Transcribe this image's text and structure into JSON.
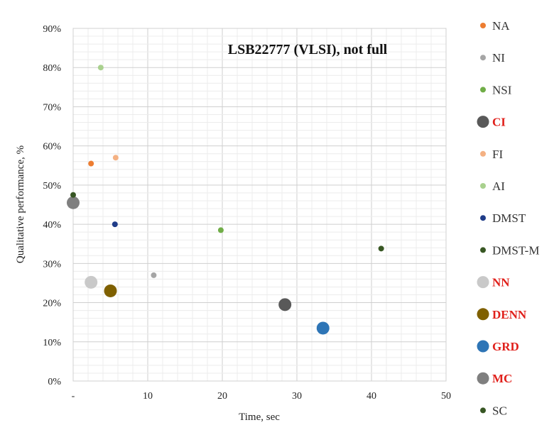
{
  "chart_data": {
    "type": "scatter",
    "title": "LSB22777 (VLSI), not full",
    "xlabel": "Time, sec",
    "ylabel": "Qualitative performance, %",
    "xlim": [
      0,
      50
    ],
    "ylim": [
      0,
      90
    ],
    "x_ticks": [
      "-",
      "10",
      "20",
      "30",
      "40",
      "50"
    ],
    "y_ticks": [
      "0%",
      "10%",
      "20%",
      "30%",
      "40%",
      "50%",
      "60%",
      "70%",
      "80%",
      "90%"
    ],
    "grid": true,
    "legend_position": "right",
    "series": [
      {
        "name": "NA",
        "color": "#ed7d31",
        "size": "small",
        "highlight": false,
        "points": [
          {
            "x": 2.4,
            "y": 55.5
          }
        ]
      },
      {
        "name": "NI",
        "color": "#a5a5a5",
        "size": "small",
        "highlight": false,
        "points": [
          {
            "x": 10.8,
            "y": 27.0
          }
        ]
      },
      {
        "name": "NSI",
        "color": "#70ad47",
        "size": "small",
        "highlight": false,
        "points": [
          {
            "x": 19.8,
            "y": 38.5
          }
        ]
      },
      {
        "name": "CI",
        "color": "#595959",
        "size": "large",
        "highlight": true,
        "points": [
          {
            "x": 28.4,
            "y": 19.5
          }
        ]
      },
      {
        "name": "FI",
        "color": "#f4b183",
        "size": "small",
        "highlight": false,
        "points": [
          {
            "x": 5.7,
            "y": 57.0
          }
        ]
      },
      {
        "name": "AI",
        "color": "#a9d18e",
        "size": "small",
        "highlight": false,
        "points": [
          {
            "x": 3.7,
            "y": 80.0
          }
        ]
      },
      {
        "name": "DMST",
        "color": "#1f3c88",
        "size": "small",
        "highlight": false,
        "points": [
          {
            "x": 5.6,
            "y": 40.0
          }
        ]
      },
      {
        "name": "DMST-M",
        "color": "#385723",
        "size": "small",
        "highlight": false,
        "points": [
          {
            "x": 41.3,
            "y": 33.8
          }
        ]
      },
      {
        "name": "NN",
        "color": "#c9c9c9",
        "size": "large",
        "highlight": true,
        "points": [
          {
            "x": 2.4,
            "y": 25.2
          }
        ]
      },
      {
        "name": "DENN",
        "color": "#7f6000",
        "size": "large",
        "highlight": true,
        "points": [
          {
            "x": 5.0,
            "y": 23.0
          }
        ]
      },
      {
        "name": "GRD",
        "color": "#2e75b6",
        "size": "large",
        "highlight": true,
        "points": [
          {
            "x": 33.5,
            "y": 13.5
          }
        ]
      },
      {
        "name": "MC",
        "color": "#7f7f7f",
        "size": "large",
        "highlight": true,
        "points": [
          {
            "x": 0.0,
            "y": 45.5
          }
        ]
      },
      {
        "name": "SC",
        "color": "#375623",
        "size": "small",
        "highlight": false,
        "points": [
          {
            "x": 0.0,
            "y": 47.5
          }
        ]
      }
    ]
  }
}
